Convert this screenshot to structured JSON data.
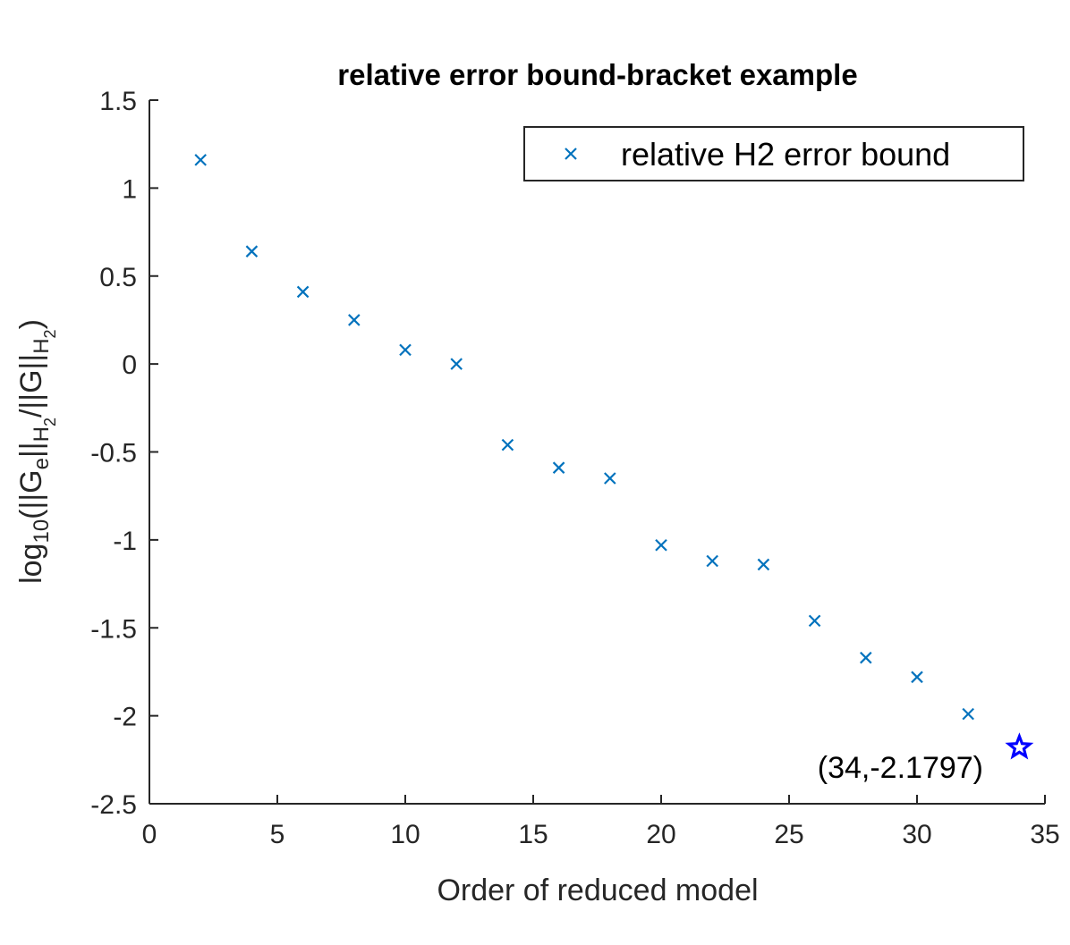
{
  "chart_data": {
    "type": "scatter",
    "title": "relative error bound-bracket example",
    "xlabel": "Order of reduced model",
    "ylabel": {
      "prefix": "log",
      "sub10": "10",
      "part1": "(||G",
      "sub_e": "e",
      "part2": "||",
      "subH": "H",
      "sub2": "2",
      "part3": "/||G||",
      "end": ")"
    },
    "xlim": [
      0,
      35
    ],
    "ylim": [
      -2.5,
      1.5
    ],
    "xticks": [
      "0",
      "5",
      "10",
      "15",
      "20",
      "25",
      "30",
      "35"
    ],
    "yticks": [
      "1.5",
      "1",
      "0.5",
      "0",
      "-0.5",
      "-1",
      "-1.5",
      "-2",
      "-2.5"
    ],
    "grid": false,
    "legend_position": "top-right",
    "series": [
      {
        "name": "relative H2 error bound",
        "marker": "x",
        "color": "#0072BD",
        "x": [
          2,
          4,
          6,
          8,
          10,
          12,
          14,
          16,
          18,
          20,
          22,
          24,
          26,
          28,
          30,
          32
        ],
        "y": [
          1.16,
          0.64,
          0.41,
          0.25,
          0.08,
          0.0,
          -0.46,
          -0.59,
          -0.65,
          -1.03,
          -1.12,
          -1.14,
          -1.46,
          -1.67,
          -1.78,
          -1.99
        ]
      }
    ],
    "highlight": {
      "x": 34,
      "y": -2.1797,
      "marker": "star",
      "color": "#0000FF",
      "label": "(34,-2.1797)"
    }
  }
}
